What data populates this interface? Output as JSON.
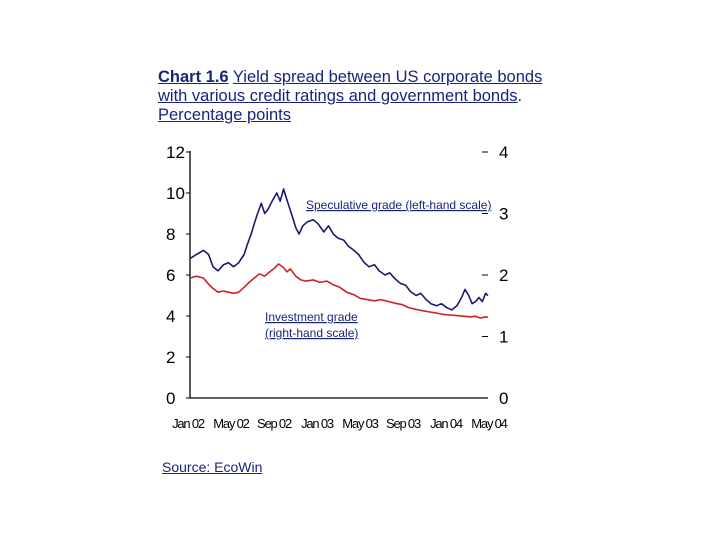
{
  "title": {
    "number": "Chart 1.6",
    "text": "Yield spread between US corporate bonds with various credit ratings and government bonds",
    "sep": ".",
    "unit": "Percentage points"
  },
  "source": "Source: EcoWin",
  "colors": {
    "speculative": "#1a1a6e",
    "investment": "#cc2222",
    "title_text": "#1a237e"
  },
  "chart_data": {
    "type": "line",
    "x_tick_labels": [
      "Jan 02",
      "May 02",
      "Sep 02",
      "Jan 03",
      "May 03",
      "Sep 03",
      "Jan 04",
      "May 04"
    ],
    "x_range": [
      "2002-01-01",
      "2004-06-01"
    ],
    "left_axis": {
      "range": [
        0,
        12
      ],
      "ticks": [
        "0",
        "2",
        "4",
        "6",
        "8",
        "10",
        "12"
      ]
    },
    "right_axis": {
      "range": [
        0,
        4
      ],
      "ticks": [
        "0",
        "1",
        "2",
        "3",
        "4"
      ]
    },
    "grid": false,
    "annotations": {
      "speculative": "Speculative grade (left-hand scale)",
      "investment_line1": "Investment grade",
      "investment_line2": "(right-hand scale)"
    },
    "series": [
      {
        "axis": "left",
        "points": [
          [
            "2002-01-01",
            6.8
          ],
          [
            "2002-01-20",
            7.0
          ],
          [
            "2002-02-10",
            7.2
          ],
          [
            "2002-02-25",
            7.0
          ],
          [
            "2002-03-10",
            6.4
          ],
          [
            "2002-03-25",
            6.2
          ],
          [
            "2002-04-10",
            6.5
          ],
          [
            "2002-04-25",
            6.6
          ],
          [
            "2002-05-10",
            6.4
          ],
          [
            "2002-05-25",
            6.6
          ],
          [
            "2002-06-10",
            7.0
          ],
          [
            "2002-06-20",
            7.5
          ],
          [
            "2002-07-01",
            8.0
          ],
          [
            "2002-07-10",
            8.5
          ],
          [
            "2002-07-20",
            9.0
          ],
          [
            "2002-07-31",
            9.5
          ],
          [
            "2002-08-10",
            9.0
          ],
          [
            "2002-08-20",
            9.2
          ],
          [
            "2002-09-01",
            9.6
          ],
          [
            "2002-09-15",
            10.0
          ],
          [
            "2002-09-25",
            9.6
          ],
          [
            "2002-10-05",
            10.2
          ],
          [
            "2002-10-12",
            9.8
          ],
          [
            "2002-10-20",
            9.4
          ],
          [
            "2002-11-01",
            8.8
          ],
          [
            "2002-11-10",
            8.3
          ],
          [
            "2002-11-20",
            8.0
          ],
          [
            "2002-12-01",
            8.4
          ],
          [
            "2002-12-15",
            8.6
          ],
          [
            "2003-01-01",
            8.7
          ],
          [
            "2003-01-15",
            8.5
          ],
          [
            "2003-02-01",
            8.1
          ],
          [
            "2003-02-15",
            8.4
          ],
          [
            "2003-03-01",
            8.0
          ],
          [
            "2003-03-15",
            7.8
          ],
          [
            "2003-04-01",
            7.7
          ],
          [
            "2003-04-15",
            7.4
          ],
          [
            "2003-05-01",
            7.2
          ],
          [
            "2003-05-15",
            7.0
          ],
          [
            "2003-06-01",
            6.6
          ],
          [
            "2003-06-15",
            6.4
          ],
          [
            "2003-07-01",
            6.5
          ],
          [
            "2003-07-15",
            6.2
          ],
          [
            "2003-08-01",
            6.0
          ],
          [
            "2003-08-15",
            6.1
          ],
          [
            "2003-09-01",
            5.8
          ],
          [
            "2003-09-15",
            5.6
          ],
          [
            "2003-10-01",
            5.5
          ],
          [
            "2003-10-15",
            5.2
          ],
          [
            "2003-11-01",
            5.0
          ],
          [
            "2003-11-15",
            5.1
          ],
          [
            "2003-12-01",
            4.8
          ],
          [
            "2003-12-15",
            4.6
          ],
          [
            "2004-01-01",
            4.5
          ],
          [
            "2004-01-15",
            4.6
          ],
          [
            "2004-02-01",
            4.4
          ],
          [
            "2004-02-15",
            4.3
          ],
          [
            "2004-03-01",
            4.5
          ],
          [
            "2004-03-15",
            4.9
          ],
          [
            "2004-03-25",
            5.3
          ],
          [
            "2004-04-05",
            5.0
          ],
          [
            "2004-04-15",
            4.6
          ],
          [
            "2004-04-25",
            4.7
          ],
          [
            "2004-05-05",
            4.9
          ],
          [
            "2004-05-15",
            4.7
          ],
          [
            "2004-05-25",
            5.1
          ],
          [
            "2004-06-01",
            5.0
          ]
        ]
      },
      {
        "axis": "right",
        "points": [
          [
            "2002-01-01",
            1.95
          ],
          [
            "2002-01-20",
            1.98
          ],
          [
            "2002-02-10",
            1.95
          ],
          [
            "2002-02-25",
            1.85
          ],
          [
            "2002-03-10",
            1.78
          ],
          [
            "2002-03-25",
            1.72
          ],
          [
            "2002-04-10",
            1.74
          ],
          [
            "2002-04-25",
            1.72
          ],
          [
            "2002-05-10",
            1.7
          ],
          [
            "2002-05-25",
            1.72
          ],
          [
            "2002-06-10",
            1.8
          ],
          [
            "2002-06-25",
            1.88
          ],
          [
            "2002-07-10",
            1.95
          ],
          [
            "2002-07-25",
            2.02
          ],
          [
            "2002-08-10",
            1.98
          ],
          [
            "2002-08-25",
            2.05
          ],
          [
            "2002-09-10",
            2.12
          ],
          [
            "2002-09-20",
            2.18
          ],
          [
            "2002-10-05",
            2.12
          ],
          [
            "2002-10-15",
            2.05
          ],
          [
            "2002-10-25",
            2.1
          ],
          [
            "2002-11-10",
            1.98
          ],
          [
            "2002-11-25",
            1.92
          ],
          [
            "2002-12-10",
            1.9
          ],
          [
            "2003-01-01",
            1.92
          ],
          [
            "2003-01-20",
            1.88
          ],
          [
            "2003-02-10",
            1.9
          ],
          [
            "2003-03-01",
            1.84
          ],
          [
            "2003-03-20",
            1.8
          ],
          [
            "2003-04-10",
            1.72
          ],
          [
            "2003-05-01",
            1.68
          ],
          [
            "2003-05-20",
            1.62
          ],
          [
            "2003-06-10",
            1.6
          ],
          [
            "2003-07-01",
            1.58
          ],
          [
            "2003-07-20",
            1.6
          ],
          [
            "2003-08-10",
            1.57
          ],
          [
            "2003-09-01",
            1.54
          ],
          [
            "2003-09-20",
            1.52
          ],
          [
            "2003-10-10",
            1.47
          ],
          [
            "2003-11-01",
            1.44
          ],
          [
            "2003-11-20",
            1.42
          ],
          [
            "2003-12-10",
            1.4
          ],
          [
            "2004-01-01",
            1.38
          ],
          [
            "2004-01-20",
            1.36
          ],
          [
            "2004-02-10",
            1.35
          ],
          [
            "2004-03-01",
            1.34
          ],
          [
            "2004-03-20",
            1.33
          ],
          [
            "2004-04-10",
            1.32
          ],
          [
            "2004-04-25",
            1.33
          ],
          [
            "2004-05-10",
            1.3
          ],
          [
            "2004-05-25",
            1.32
          ],
          [
            "2004-06-01",
            1.31
          ]
        ]
      }
    ]
  }
}
